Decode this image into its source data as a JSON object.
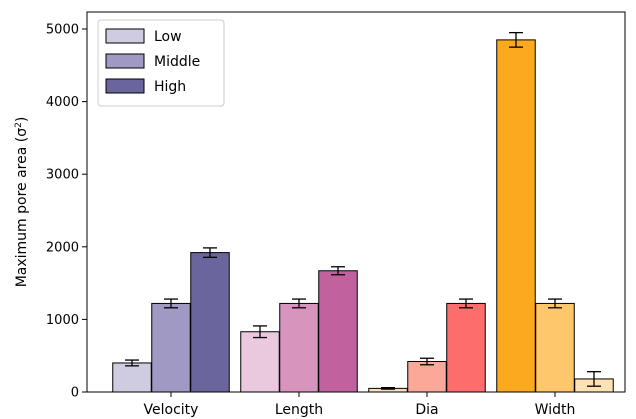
{
  "chart_data": {
    "type": "bar",
    "title": "",
    "xlabel": "",
    "ylabel": "Maximum pore area (σ²)",
    "ylabel_base": "Maximum pore area (σ",
    "ylabel_sup": "2",
    "ylabel_close": ")",
    "categories": [
      "Velocity",
      "Length",
      "Dia",
      "Width"
    ],
    "ylim": [
      0,
      5200
    ],
    "yticks": [
      0,
      1000,
      2000,
      3000,
      4000,
      5000
    ],
    "grid": false,
    "legend_position": "top-left",
    "series": [
      {
        "name": "Low",
        "values": [
          400,
          830,
          50,
          4850
        ],
        "errors": [
          40,
          80,
          10,
          100
        ],
        "colors": [
          "#cfcbe0",
          "#eac9df",
          "#fcdcc0",
          "#fca91f"
        ]
      },
      {
        "name": "Middle",
        "values": [
          1220,
          1220,
          420,
          1220
        ],
        "errors": [
          60,
          60,
          45,
          60
        ],
        "colors": [
          "#9f99c4",
          "#d795bd",
          "#fca899",
          "#ffc76c"
        ]
      },
      {
        "name": "High",
        "values": [
          1920,
          1670,
          1220,
          180
        ],
        "errors": [
          65,
          55,
          60,
          100
        ],
        "colors": [
          "#6b659d",
          "#c1629f",
          "#fd6d6b",
          "#ffe1b3"
        ]
      }
    ],
    "legend_colors": [
      "#cfcbe0",
      "#9f99c4",
      "#6b659d"
    ]
  }
}
